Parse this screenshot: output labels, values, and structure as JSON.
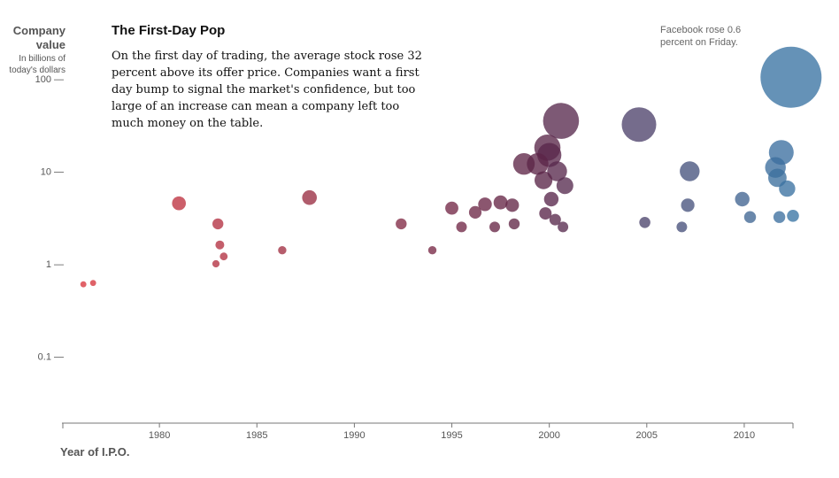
{
  "chart_data": {
    "type": "scatter",
    "title": "The First-Day Pop",
    "subtitle": "On the first day of trading, the average stock rose 32 percent above its offer price. Companies want a first day bump to signal the market's confidence, but too large of an increase can mean a company left too much money on the table.",
    "ylabel": "Company value",
    "ylabel_sub": "In billions of today's dollars",
    "xlabel": "Year of I.P.O.",
    "annotation": "Facebook rose 0.6 percent on Friday.",
    "y_scale": "log",
    "ylim": [
      0.02,
      200
    ],
    "xlim": [
      1975,
      2012.5
    ],
    "x_ticks": [
      {
        "value": 1980,
        "label": "1980"
      },
      {
        "value": 1985,
        "label": "1985"
      },
      {
        "value": 1990,
        "label": "1990"
      },
      {
        "value": 1995,
        "label": "1995"
      },
      {
        "value": 2000,
        "label": "2000"
      },
      {
        "value": 2005,
        "label": "2005"
      },
      {
        "value": 2010,
        "label": "2010"
      }
    ],
    "y_ticks": [
      {
        "value": 100,
        "label": "100 —"
      },
      {
        "value": 10,
        "label": "10 —"
      },
      {
        "value": 1,
        "label": "1 —"
      },
      {
        "value": 0.1,
        "label": "0.1 —"
      }
    ],
    "color_scale": {
      "start": "#d9363e",
      "middle": "#5a2548",
      "end": "#3a74a4"
    },
    "points": [
      {
        "x": 1976.1,
        "y": 0.6,
        "v": 0.6
      },
      {
        "x": 1976.6,
        "y": 0.62,
        "v": 0.62
      },
      {
        "x": 1981.0,
        "y": 4.5,
        "v": 4.5
      },
      {
        "x": 1983.0,
        "y": 2.7,
        "v": 2.7
      },
      {
        "x": 1983.1,
        "y": 1.6,
        "v": 1.6
      },
      {
        "x": 1983.3,
        "y": 1.2,
        "v": 1.2
      },
      {
        "x": 1982.9,
        "y": 1.0,
        "v": 1.0
      },
      {
        "x": 1986.3,
        "y": 1.4,
        "v": 1.4
      },
      {
        "x": 1987.7,
        "y": 5.2,
        "v": 5.2
      },
      {
        "x": 1992.4,
        "y": 2.7,
        "v": 2.7
      },
      {
        "x": 1994.0,
        "y": 1.4,
        "v": 1.4
      },
      {
        "x": 1995.0,
        "y": 4.0,
        "v": 4.0
      },
      {
        "x": 1995.5,
        "y": 2.5,
        "v": 2.5
      },
      {
        "x": 1996.2,
        "y": 3.6,
        "v": 3.6
      },
      {
        "x": 1996.7,
        "y": 4.4,
        "v": 4.4
      },
      {
        "x": 1997.5,
        "y": 4.6,
        "v": 4.6
      },
      {
        "x": 1998.1,
        "y": 4.3,
        "v": 4.3
      },
      {
        "x": 1997.2,
        "y": 2.5,
        "v": 2.5
      },
      {
        "x": 1998.2,
        "y": 2.7,
        "v": 2.7
      },
      {
        "x": 1998.7,
        "y": 12.0,
        "v": 12.0
      },
      {
        "x": 1999.4,
        "y": 12.0,
        "v": 12.0
      },
      {
        "x": 1999.9,
        "y": 18.0,
        "v": 18.0
      },
      {
        "x": 2000.0,
        "y": 15.0,
        "v": 15.0
      },
      {
        "x": 2000.4,
        "y": 10.0,
        "v": 10.0
      },
      {
        "x": 1999.7,
        "y": 8.0,
        "v": 8.0
      },
      {
        "x": 2000.8,
        "y": 7.0,
        "v": 7.0
      },
      {
        "x": 2000.1,
        "y": 5.0,
        "v": 5.0
      },
      {
        "x": 1999.8,
        "y": 3.5,
        "v": 3.5
      },
      {
        "x": 2000.3,
        "y": 3.0,
        "v": 3.0
      },
      {
        "x": 2000.7,
        "y": 2.5,
        "v": 2.5
      },
      {
        "x": 2000.6,
        "y": 35.0,
        "v": 35.0
      },
      {
        "x": 2004.6,
        "y": 32.0,
        "v": 32.0
      },
      {
        "x": 2004.9,
        "y": 2.8,
        "v": 2.8
      },
      {
        "x": 2006.8,
        "y": 2.5,
        "v": 2.5
      },
      {
        "x": 2007.2,
        "y": 10.0,
        "v": 10.0
      },
      {
        "x": 2007.1,
        "y": 4.3,
        "v": 4.3
      },
      {
        "x": 2009.9,
        "y": 5.0,
        "v": 5.0
      },
      {
        "x": 2010.3,
        "y": 3.2,
        "v": 3.2
      },
      {
        "x": 2011.6,
        "y": 11.0,
        "v": 11.0
      },
      {
        "x": 2011.9,
        "y": 16.0,
        "v": 16.0
      },
      {
        "x": 2011.7,
        "y": 8.5,
        "v": 8.5
      },
      {
        "x": 2012.2,
        "y": 6.5,
        "v": 6.5
      },
      {
        "x": 2011.8,
        "y": 3.2,
        "v": 3.2
      },
      {
        "x": 2012.5,
        "y": 3.3,
        "v": 3.3
      },
      {
        "x": 2012.4,
        "y": 104.0,
        "v": 104.0
      }
    ]
  }
}
